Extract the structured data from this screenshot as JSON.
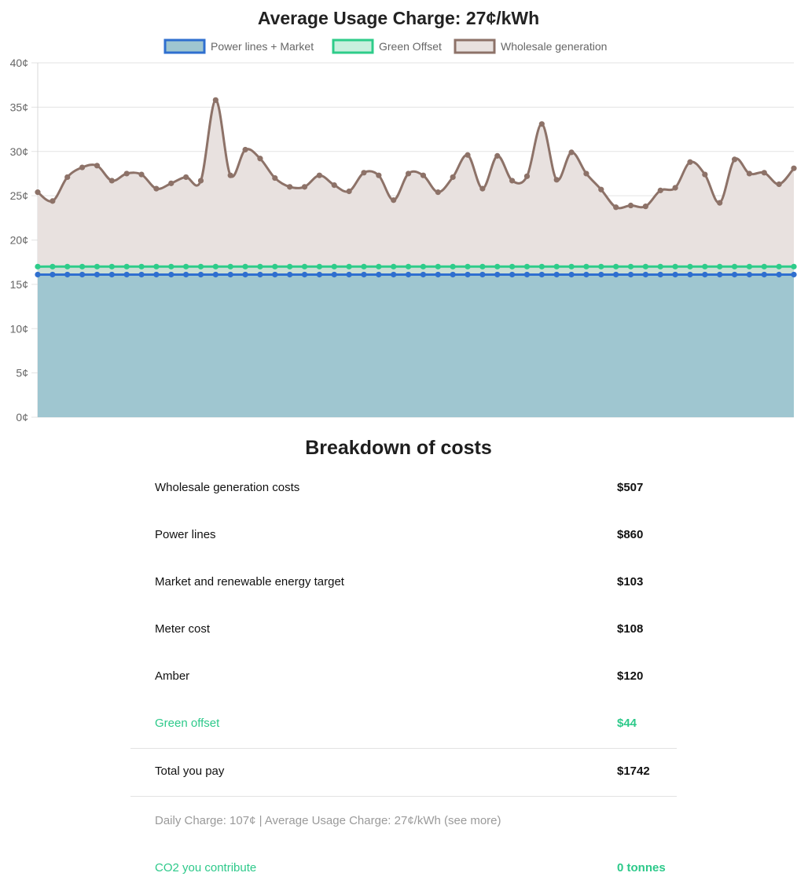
{
  "chart_data": {
    "type": "line",
    "title": "Average Usage Charge: 27¢/kWh",
    "legend_position": "top",
    "y_ticks": [
      "40¢",
      "35¢",
      "30¢",
      "25¢",
      "20¢",
      "15¢",
      "10¢",
      "5¢",
      "0¢"
    ],
    "ylim": [
      0,
      40
    ],
    "grid": true,
    "series": [
      {
        "name": "Power lines + Market",
        "color": "#2f6fcf",
        "fill": "#9fc6d0",
        "values": [
          16.1,
          16.1,
          16.1,
          16.1,
          16.1,
          16.1,
          16.1,
          16.1,
          16.1,
          16.1,
          16.1,
          16.1,
          16.1,
          16.1,
          16.1,
          16.1,
          16.1,
          16.1,
          16.1,
          16.1,
          16.1,
          16.1,
          16.1,
          16.1,
          16.1,
          16.1,
          16.1,
          16.1,
          16.1,
          16.1,
          16.1,
          16.1,
          16.1,
          16.1,
          16.1,
          16.1,
          16.1,
          16.1,
          16.1,
          16.1,
          16.1,
          16.1,
          16.1,
          16.1,
          16.1,
          16.1,
          16.1,
          16.1,
          16.1,
          16.1,
          16.1,
          16.1
        ]
      },
      {
        "name": "Green Offset",
        "color": "#2ecc8a",
        "fill": "#c9f0de",
        "values": [
          17.0,
          17.0,
          17.0,
          17.0,
          17.0,
          17.0,
          17.0,
          17.0,
          17.0,
          17.0,
          17.0,
          17.0,
          17.0,
          17.0,
          17.0,
          17.0,
          17.0,
          17.0,
          17.0,
          17.0,
          17.0,
          17.0,
          17.0,
          17.0,
          17.0,
          17.0,
          17.0,
          17.0,
          17.0,
          17.0,
          17.0,
          17.0,
          17.0,
          17.0,
          17.0,
          17.0,
          17.0,
          17.0,
          17.0,
          17.0,
          17.0,
          17.0,
          17.0,
          17.0,
          17.0,
          17.0,
          17.0,
          17.0,
          17.0,
          17.0,
          17.0,
          17.0
        ]
      },
      {
        "name": "Wholesale generation",
        "color": "#8d7268",
        "fill": "#e8e1df",
        "values": [
          25.4,
          24.4,
          27.1,
          28.2,
          28.4,
          26.7,
          27.5,
          27.4,
          25.8,
          26.4,
          27.1,
          26.7,
          35.8,
          27.3,
          30.2,
          29.2,
          27.0,
          26.0,
          26.0,
          27.3,
          26.2,
          25.5,
          27.6,
          27.3,
          24.5,
          27.5,
          27.3,
          25.4,
          27.1,
          29.6,
          25.8,
          29.5,
          26.7,
          27.2,
          33.1,
          26.8,
          29.9,
          27.5,
          25.7,
          23.7,
          23.9,
          23.8,
          25.6,
          25.9,
          28.8,
          27.4,
          24.2,
          29.1,
          27.5,
          27.6,
          26.3,
          28.1
        ]
      }
    ]
  },
  "breakdown": {
    "title": "Breakdown of costs",
    "items": [
      {
        "label": "Wholesale generation costs",
        "value": "$507"
      },
      {
        "label": "Power lines",
        "value": "$860"
      },
      {
        "label": "Market and renewable energy target",
        "value": "$103"
      },
      {
        "label": "Meter cost",
        "value": "$108"
      },
      {
        "label": "Amber",
        "value": "$120"
      },
      {
        "label": "Green offset",
        "value": "$44"
      }
    ],
    "total": {
      "label": "Total you pay",
      "value": "$1742"
    },
    "note": "Daily Charge: 107¢ | Average Usage Charge: 27¢/kWh (see more)",
    "co2": {
      "label": "CO2 you contribute",
      "value": "0 tonnes"
    },
    "green_color": "#2dc98a"
  }
}
